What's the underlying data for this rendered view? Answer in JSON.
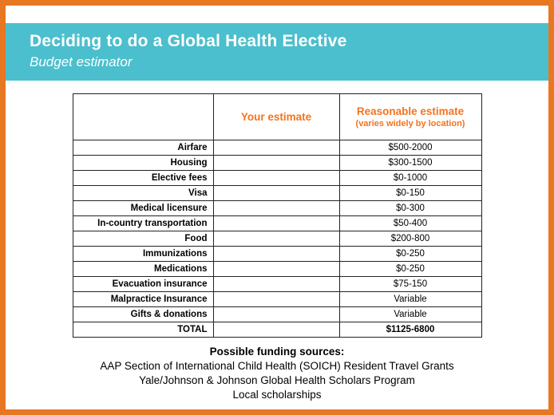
{
  "slide": {
    "title": "Deciding to do a Global Health Elective",
    "subtitle": "Budget estimator"
  },
  "colors": {
    "border_orange": "#E87722",
    "band_teal": "#4BBFCD",
    "accent_orange": "#F4731D"
  },
  "table": {
    "headers": {
      "your_estimate": "Your estimate",
      "reasonable_estimate": "Reasonable estimate",
      "reasonable_note": "(varies widely by location)"
    },
    "rows": [
      {
        "label": "Airfare",
        "your": "",
        "reasonable": "$500-2000"
      },
      {
        "label": "Housing",
        "your": "",
        "reasonable": "$300-1500"
      },
      {
        "label": "Elective fees",
        "your": "",
        "reasonable": "$0-1000"
      },
      {
        "label": "Visa",
        "your": "",
        "reasonable": "$0-150"
      },
      {
        "label": "Medical licensure",
        "your": "",
        "reasonable": "$0-300"
      },
      {
        "label": "In-country transportation",
        "your": "",
        "reasonable": "$50-400"
      },
      {
        "label": "Food",
        "your": "",
        "reasonable": "$200-800"
      },
      {
        "label": "Immunizations",
        "your": "",
        "reasonable": "$0-250"
      },
      {
        "label": "Medications",
        "your": "",
        "reasonable": "$0-250"
      },
      {
        "label": "Evacuation insurance",
        "your": "",
        "reasonable": "$75-150"
      },
      {
        "label": "Malpractice Insurance",
        "your": "",
        "reasonable": "Variable"
      },
      {
        "label": "Gifts & donations",
        "your": "",
        "reasonable": "Variable"
      },
      {
        "label": "TOTAL",
        "your": "",
        "reasonable": "$1125-6800"
      }
    ]
  },
  "funding": {
    "heading": "Possible funding sources:",
    "lines": [
      "AAP Section of International Child Health (SOICH) Resident Travel Grants",
      "Yale/Johnson & Johnson Global Health Scholars Program",
      "Local scholarships"
    ]
  }
}
